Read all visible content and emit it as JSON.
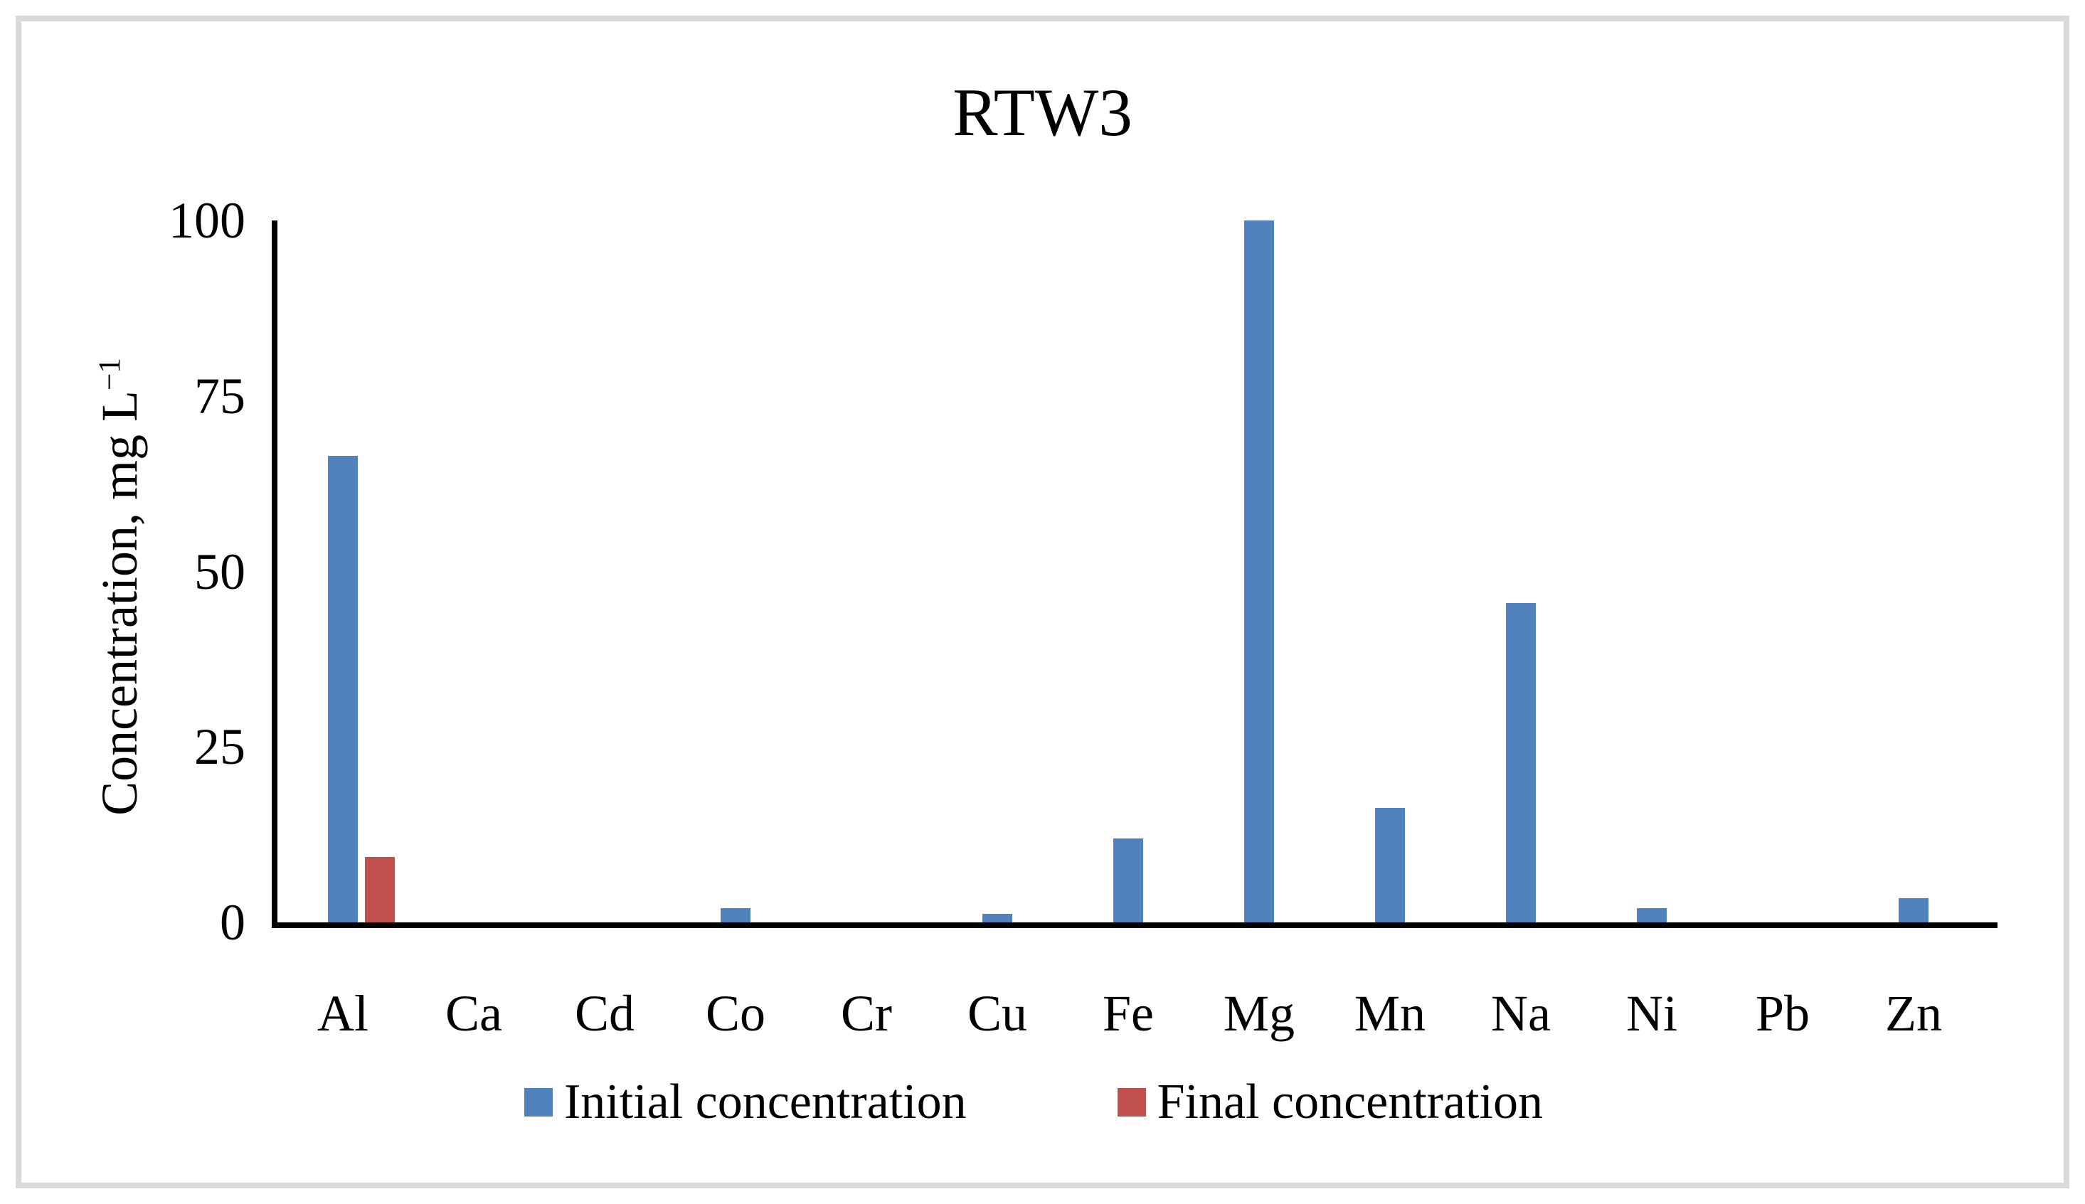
{
  "figure": {
    "title": "RTW3"
  },
  "chart_data": {
    "type": "bar",
    "title": "RTW3",
    "xlabel": "",
    "ylabel": "Concentration, mg L⁻¹",
    "ylabel_parts": {
      "base": "Concentration, mg L",
      "superscript": "−1"
    },
    "categories": [
      "Al",
      "Ca",
      "Cd",
      "Co",
      "Cr",
      "Cu",
      "Fe",
      "Mg",
      "Mn",
      "Na",
      "Ni",
      "Pb",
      "Zn"
    ],
    "series": [
      {
        "name": "Initial concentration",
        "color": "#4F81BD",
        "values": [
          66.5,
          0,
          0,
          2,
          0,
          1.2,
          12,
          100,
          16.3,
          45.5,
          2,
          0,
          3.4
        ]
      },
      {
        "name": "Final concentration",
        "color": "#C0504D",
        "values": [
          9.3,
          0,
          0,
          0,
          0,
          0,
          0,
          0,
          0,
          0,
          0,
          0,
          0
        ]
      }
    ],
    "yticks": [
      0,
      25,
      50,
      75,
      100
    ],
    "ylim": [
      0,
      100
    ],
    "grid": false,
    "legend_position": "bottom-center",
    "axis_color": "#000000",
    "frame_color": "#D9D9D9"
  }
}
